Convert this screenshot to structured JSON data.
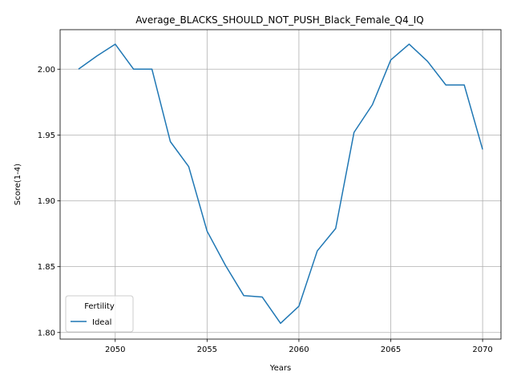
{
  "chart_data": {
    "type": "line",
    "title": "Average_BLACKS_SHOULD_NOT_PUSH_Black_Female_Q4_IQ",
    "xlabel": "Years",
    "ylabel": "Score(1-4)",
    "xlim": [
      2047,
      2071
    ],
    "ylim": [
      1.795,
      2.03
    ],
    "xticks": [
      2050,
      2055,
      2060,
      2065,
      2070
    ],
    "yticks": [
      1.8,
      1.85,
      1.9,
      1.95,
      2.0
    ],
    "grid": true,
    "legend": {
      "title": "Fertility",
      "placement": "lower-left"
    },
    "series": [
      {
        "name": "Ideal",
        "color": "#1f77b4",
        "x": [
          2048,
          2049,
          2050,
          2051,
          2052,
          2053,
          2054,
          2055,
          2056,
          2057,
          2058,
          2059,
          2060,
          2061,
          2062,
          2063,
          2064,
          2065,
          2066,
          2067,
          2068,
          2069,
          2070
        ],
        "y": [
          2.0,
          2.01,
          2.019,
          2.0,
          2.0,
          1.945,
          1.926,
          1.877,
          1.851,
          1.828,
          1.827,
          1.807,
          1.82,
          1.862,
          1.879,
          1.952,
          1.973,
          2.007,
          2.019,
          2.006,
          1.988,
          1.988,
          1.939
        ]
      }
    ]
  }
}
